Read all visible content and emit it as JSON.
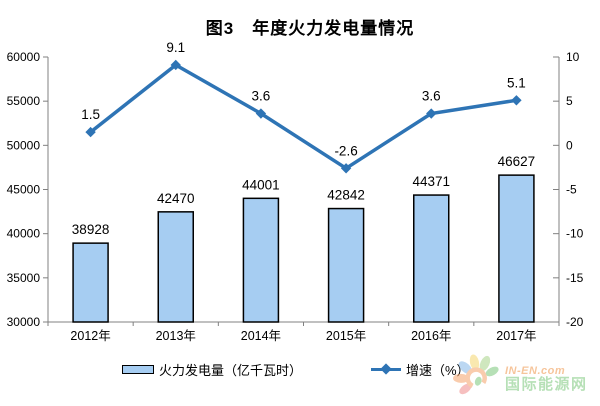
{
  "title": "图3　年度火力发电量情况",
  "chart_data": {
    "type": "bar+line combo",
    "categories": [
      "2012年",
      "2013年",
      "2014年",
      "2015年",
      "2016年",
      "2017年"
    ],
    "series": [
      {
        "name": "火力发电量（亿千瓦时）",
        "type": "bar",
        "axis": "left",
        "values": [
          38928,
          42470,
          44001,
          42842,
          44371,
          46627
        ],
        "labels": [
          "38928",
          "42470",
          "44001",
          "42842",
          "44371",
          "46627"
        ],
        "fill": "#A6CDF2",
        "stroke": "#000000"
      },
      {
        "name": "增速（%）",
        "type": "line",
        "axis": "right",
        "values": [
          1.5,
          9.1,
          3.6,
          -2.6,
          3.6,
          5.1
        ],
        "labels": [
          "1.5",
          "9.1",
          "3.6",
          "-2.6",
          "3.6",
          "5.1"
        ],
        "color": "#2E74B5",
        "marker": "diamond"
      }
    ],
    "left_axis": {
      "min": 30000,
      "max": 60000,
      "step": 5000,
      "tick_labels": [
        "30000",
        "35000",
        "40000",
        "45000",
        "50000",
        "55000",
        "60000"
      ]
    },
    "right_axis": {
      "min": -20,
      "max": 10,
      "step": 5,
      "tick_labels": [
        "-20",
        "-15",
        "-10",
        "-5",
        "0",
        "5",
        "10"
      ]
    },
    "grid": false,
    "legend_position": "bottom",
    "axis_color": "#808080",
    "text_color": "#000000"
  },
  "legend": {
    "items": [
      {
        "label": "火力发电量（亿千瓦时）"
      },
      {
        "label": "增速（%）"
      }
    ]
  },
  "watermark": {
    "brand": "IN-EN.com",
    "name": "国际能源网",
    "brand_color": "#F0964B",
    "name_color": "#7CC87C"
  }
}
